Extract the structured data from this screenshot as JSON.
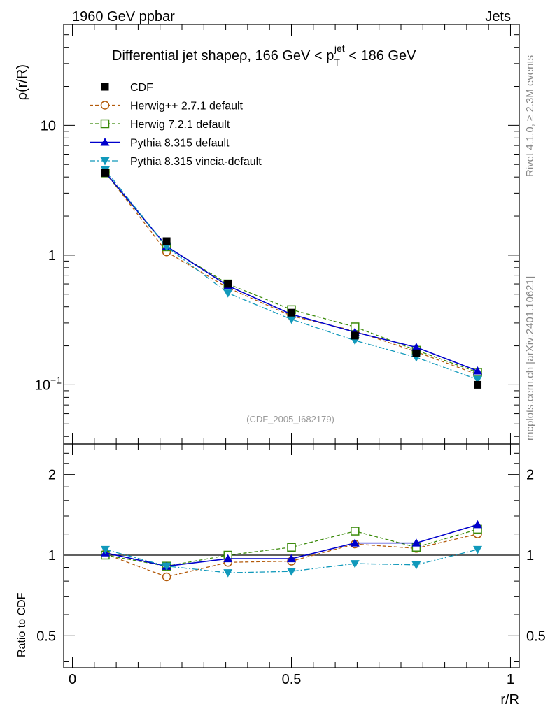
{
  "header": {
    "left": "1960 GeV ppbar",
    "right": "Jets"
  },
  "title": {
    "main": "Differential jet shapeρ, 166 GeV < p",
    "sup": "jet",
    "sub": "T",
    "tail": " < 186 GeV"
  },
  "side_labels": {
    "rivet": "Rivet 4.1.0, ≥ 2.3M events",
    "mcplots": "mcplots.cern.ch [arXiv:2401.10621]"
  },
  "analysis_tag": "(CDF_2005_I682179)",
  "colors": {
    "CDF": "#000000",
    "Herwig++": "#b35a0a",
    "Herwig7": "#3a8a0a",
    "Pythia": "#0000cc",
    "Vincia": "#1199bb"
  },
  "chart_data": [
    {
      "type": "line",
      "panel": "main",
      "ylabel": "ρ(r/R)",
      "yscale": "log",
      "ylim": [
        0.035,
        60
      ],
      "xlim": [
        -0.02,
        1.02
      ],
      "yticks": [
        {
          "value": 10,
          "label": "10"
        },
        {
          "value": 1,
          "label": "1"
        },
        {
          "value": 0.1,
          "label": "10",
          "exp": "−1"
        }
      ],
      "x": [
        0.075,
        0.215,
        0.355,
        0.5,
        0.645,
        0.785,
        0.925
      ],
      "series": [
        {
          "name": "CDF",
          "style": "data",
          "marker": "square-filled",
          "values": [
            4.3,
            1.28,
            0.6,
            0.36,
            0.24,
            0.175,
            0.1
          ],
          "errors": [
            0.15,
            0.05,
            0.02,
            0.015,
            0.012,
            0.01,
            0.006
          ]
        },
        {
          "name": "Herwig++ 2.7.1 default",
          "style": "dashed",
          "marker": "circle-open",
          "colorKey": "Herwig++",
          "values": [
            4.35,
            1.06,
            0.56,
            0.34,
            0.26,
            0.18,
            0.12
          ]
        },
        {
          "name": "Herwig 7.2.1 default",
          "style": "dashed",
          "marker": "square-open",
          "colorKey": "Herwig7",
          "values": [
            4.3,
            1.16,
            0.6,
            0.38,
            0.28,
            0.185,
            0.125
          ]
        },
        {
          "name": "Pythia 8.315 default",
          "style": "solid",
          "marker": "triangle-up",
          "colorKey": "Pythia",
          "values": [
            4.35,
            1.17,
            0.58,
            0.35,
            0.255,
            0.195,
            0.128
          ]
        },
        {
          "name": "Pythia 8.315 vincia-default",
          "style": "dashdot",
          "marker": "triangle-down",
          "colorKey": "Vincia",
          "values": [
            4.55,
            1.16,
            0.51,
            0.32,
            0.22,
            0.163,
            0.11
          ]
        }
      ]
    },
    {
      "type": "line",
      "panel": "ratio",
      "ylabel": "Ratio to CDF",
      "xlabel": "r/R",
      "yscale": "log",
      "ylim": [
        0.38,
        2.6
      ],
      "yticks": [
        {
          "value": 2,
          "label": "2"
        },
        {
          "value": 1,
          "label": "1"
        },
        {
          "value": 0.5,
          "label": "0.5"
        }
      ],
      "xticks": [
        {
          "value": 0,
          "label": "0"
        },
        {
          "value": 0.5,
          "label": "0.5"
        },
        {
          "value": 1,
          "label": "1"
        }
      ],
      "x": [
        0.075,
        0.215,
        0.355,
        0.5,
        0.645,
        0.785,
        0.925
      ],
      "series": [
        {
          "name": "Herwig++ 2.7.1 default",
          "style": "dashed",
          "marker": "circle-open",
          "colorKey": "Herwig++",
          "values": [
            1.01,
            0.83,
            0.94,
            0.95,
            1.1,
            1.06,
            1.2
          ]
        },
        {
          "name": "Herwig 7.2.1 default",
          "style": "dashed",
          "marker": "square-open",
          "colorKey": "Herwig7",
          "values": [
            1.0,
            0.91,
            1.0,
            1.07,
            1.23,
            1.07,
            1.25
          ]
        },
        {
          "name": "Pythia 8.315 default",
          "style": "solid",
          "marker": "triangle-up",
          "colorKey": "Pythia",
          "values": [
            1.02,
            0.91,
            0.97,
            0.97,
            1.11,
            1.11,
            1.3
          ]
        },
        {
          "name": "Pythia 8.315 vincia-default",
          "style": "dashdot",
          "marker": "triangle-down",
          "colorKey": "Vincia",
          "values": [
            1.05,
            0.91,
            0.86,
            0.87,
            0.93,
            0.92,
            1.05
          ]
        }
      ]
    }
  ]
}
